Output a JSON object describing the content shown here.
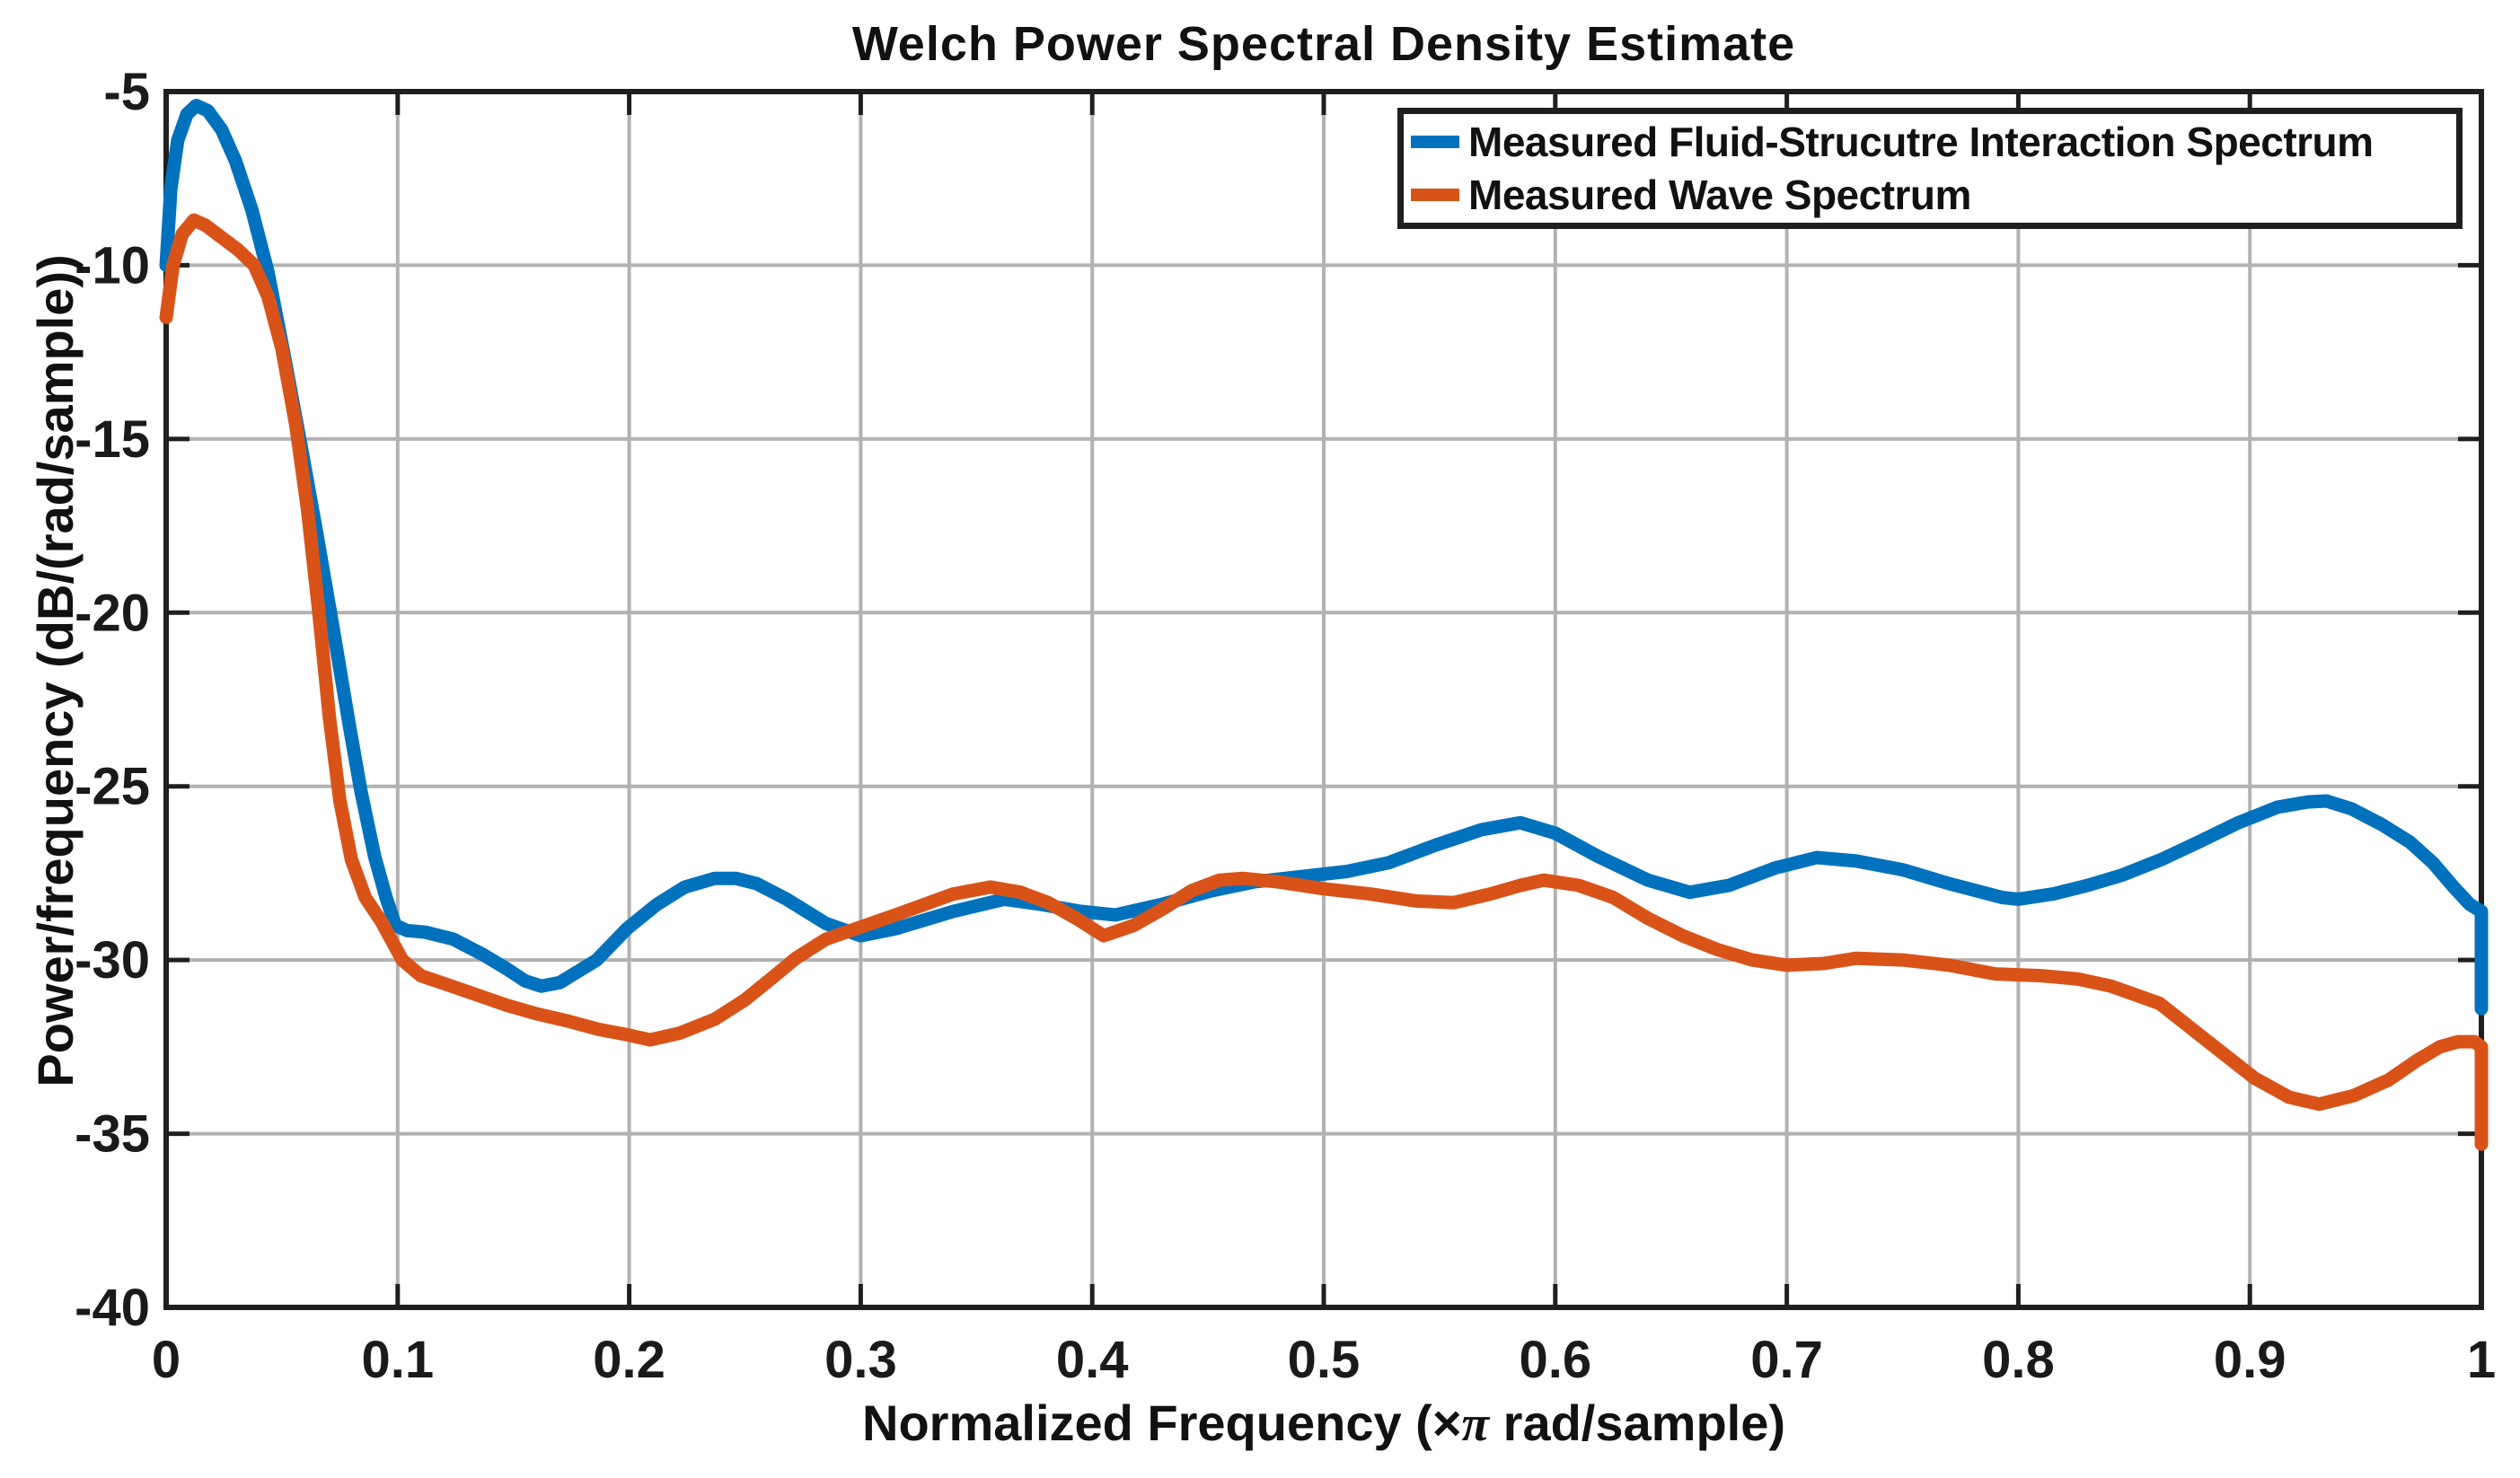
{
  "figure_title": "Welch Power Spectral Density Estimate",
  "chart_data": {
    "type": "line",
    "title": "Welch Power Spectral Density Estimate",
    "xlabel": "Normalized Frequency  (×π rad/sample)",
    "xlabel_parts": {
      "prefix": "Normalized Frequency  (×",
      "pi": "π",
      "suffix": " rad/sample)"
    },
    "ylabel": "Power/frequency (dB/(rad/sample))",
    "xlim": [
      0,
      1
    ],
    "ylim": [
      -40,
      -5
    ],
    "grid": true,
    "legend_position": "northeast",
    "axis_color": "#1f1f1f",
    "grid_color": "#b2b2b2",
    "xticks": [
      {
        "v": 0,
        "label": "0"
      },
      {
        "v": 0.1,
        "label": "0.1"
      },
      {
        "v": 0.2,
        "label": "0.2"
      },
      {
        "v": 0.3,
        "label": "0.3"
      },
      {
        "v": 0.4,
        "label": "0.4"
      },
      {
        "v": 0.5,
        "label": "0.5"
      },
      {
        "v": 0.6,
        "label": "0.6"
      },
      {
        "v": 0.7,
        "label": "0.7"
      },
      {
        "v": 0.8,
        "label": "0.8"
      },
      {
        "v": 0.9,
        "label": "0.9"
      },
      {
        "v": 1,
        "label": "1"
      }
    ],
    "yticks": [
      {
        "v": -40,
        "label": "-40"
      },
      {
        "v": -35,
        "label": "-35"
      },
      {
        "v": -30,
        "label": "-30"
      },
      {
        "v": -25,
        "label": "-25"
      },
      {
        "v": -20,
        "label": "-20"
      },
      {
        "v": -15,
        "label": "-15"
      },
      {
        "v": -10,
        "label": "-10"
      },
      {
        "v": -5,
        "label": "-5"
      }
    ],
    "series": [
      {
        "name": "Measured Fluid-Strucutre Interaction Spectrum",
        "color": "#0072BD",
        "points": [
          [
            0,
            -10.0
          ],
          [
            0.002,
            -7.8
          ],
          [
            0.005,
            -6.4
          ],
          [
            0.009,
            -5.65
          ],
          [
            0.013,
            -5.4
          ],
          [
            0.018,
            -5.55
          ],
          [
            0.024,
            -6.1
          ],
          [
            0.03,
            -7.0
          ],
          [
            0.037,
            -8.4
          ],
          [
            0.044,
            -10.2
          ],
          [
            0.051,
            -12.6
          ],
          [
            0.058,
            -15.1
          ],
          [
            0.065,
            -17.7
          ],
          [
            0.072,
            -20.4
          ],
          [
            0.079,
            -23.2
          ],
          [
            0.084,
            -25.1
          ],
          [
            0.09,
            -27.0
          ],
          [
            0.095,
            -28.2
          ],
          [
            0.099,
            -29.0
          ],
          [
            0.104,
            -29.15
          ],
          [
            0.112,
            -29.2
          ],
          [
            0.124,
            -29.4
          ],
          [
            0.137,
            -29.85
          ],
          [
            0.147,
            -30.25
          ],
          [
            0.155,
            -30.6
          ],
          [
            0.162,
            -30.75
          ],
          [
            0.17,
            -30.65
          ],
          [
            0.186,
            -30.0
          ],
          [
            0.199,
            -29.1
          ],
          [
            0.212,
            -28.4
          ],
          [
            0.224,
            -27.9
          ],
          [
            0.237,
            -27.65
          ],
          [
            0.246,
            -27.65
          ],
          [
            0.255,
            -27.8
          ],
          [
            0.268,
            -28.25
          ],
          [
            0.285,
            -28.95
          ],
          [
            0.3,
            -29.3
          ],
          [
            0.315,
            -29.1
          ],
          [
            0.34,
            -28.6
          ],
          [
            0.362,
            -28.25
          ],
          [
            0.378,
            -28.4
          ],
          [
            0.395,
            -28.6
          ],
          [
            0.41,
            -28.7
          ],
          [
            0.43,
            -28.4
          ],
          [
            0.452,
            -28.0
          ],
          [
            0.47,
            -27.75
          ],
          [
            0.49,
            -27.6
          ],
          [
            0.51,
            -27.45
          ],
          [
            0.528,
            -27.2
          ],
          [
            0.548,
            -26.7
          ],
          [
            0.568,
            -26.25
          ],
          [
            0.585,
            -26.05
          ],
          [
            0.6,
            -26.35
          ],
          [
            0.618,
            -27.0
          ],
          [
            0.64,
            -27.7
          ],
          [
            0.658,
            -28.05
          ],
          [
            0.675,
            -27.85
          ],
          [
            0.695,
            -27.35
          ],
          [
            0.713,
            -27.05
          ],
          [
            0.73,
            -27.15
          ],
          [
            0.75,
            -27.4
          ],
          [
            0.77,
            -27.8
          ],
          [
            0.793,
            -28.2
          ],
          [
            0.8,
            -28.25
          ],
          [
            0.815,
            -28.1
          ],
          [
            0.83,
            -27.85
          ],
          [
            0.845,
            -27.55
          ],
          [
            0.862,
            -27.1
          ],
          [
            0.878,
            -26.6
          ],
          [
            0.895,
            -26.05
          ],
          [
            0.912,
            -25.6
          ],
          [
            0.925,
            -25.45
          ],
          [
            0.933,
            -25.42
          ],
          [
            0.944,
            -25.65
          ],
          [
            0.957,
            -26.1
          ],
          [
            0.969,
            -26.6
          ],
          [
            0.979,
            -27.2
          ],
          [
            0.988,
            -27.9
          ],
          [
            0.995,
            -28.4
          ],
          [
            1.0,
            -28.6
          ],
          [
            1.0,
            -31.4
          ]
        ]
      },
      {
        "name": "Measured Wave Spectrum",
        "color": "#D95319",
        "points": [
          [
            0,
            -11.5
          ],
          [
            0.003,
            -10.0
          ],
          [
            0.007,
            -9.1
          ],
          [
            0.012,
            -8.7
          ],
          [
            0.017,
            -8.85
          ],
          [
            0.024,
            -9.2
          ],
          [
            0.031,
            -9.55
          ],
          [
            0.038,
            -10.0
          ],
          [
            0.044,
            -10.9
          ],
          [
            0.05,
            -12.4
          ],
          [
            0.056,
            -14.6
          ],
          [
            0.061,
            -17.0
          ],
          [
            0.066,
            -20.0
          ],
          [
            0.0705,
            -23.0
          ],
          [
            0.075,
            -25.4
          ],
          [
            0.08,
            -27.1
          ],
          [
            0.086,
            -28.2
          ],
          [
            0.093,
            -28.9
          ],
          [
            0.102,
            -30.0
          ],
          [
            0.11,
            -30.45
          ],
          [
            0.121,
            -30.7
          ],
          [
            0.134,
            -31.0
          ],
          [
            0.147,
            -31.3
          ],
          [
            0.16,
            -31.55
          ],
          [
            0.173,
            -31.75
          ],
          [
            0.187,
            -32.0
          ],
          [
            0.199,
            -32.15
          ],
          [
            0.209,
            -32.3
          ],
          [
            0.222,
            -32.1
          ],
          [
            0.237,
            -31.7
          ],
          [
            0.25,
            -31.15
          ],
          [
            0.262,
            -30.5
          ],
          [
            0.272,
            -29.95
          ],
          [
            0.285,
            -29.4
          ],
          [
            0.3,
            -29.05
          ],
          [
            0.315,
            -28.7
          ],
          [
            0.34,
            -28.1
          ],
          [
            0.356,
            -27.9
          ],
          [
            0.369,
            -28.05
          ],
          [
            0.381,
            -28.35
          ],
          [
            0.393,
            -28.8
          ],
          [
            0.405,
            -29.3
          ],
          [
            0.418,
            -29.0
          ],
          [
            0.43,
            -28.55
          ],
          [
            0.443,
            -28.0
          ],
          [
            0.455,
            -27.7
          ],
          [
            0.465,
            -27.65
          ],
          [
            0.48,
            -27.75
          ],
          [
            0.5,
            -27.95
          ],
          [
            0.52,
            -28.1
          ],
          [
            0.54,
            -28.3
          ],
          [
            0.556,
            -28.35
          ],
          [
            0.572,
            -28.1
          ],
          [
            0.585,
            -27.85
          ],
          [
            0.595,
            -27.7
          ],
          [
            0.61,
            -27.85
          ],
          [
            0.625,
            -28.2
          ],
          [
            0.64,
            -28.8
          ],
          [
            0.655,
            -29.3
          ],
          [
            0.67,
            -29.7
          ],
          [
            0.685,
            -30.0
          ],
          [
            0.7,
            -30.15
          ],
          [
            0.716,
            -30.1
          ],
          [
            0.73,
            -29.95
          ],
          [
            0.75,
            -30.0
          ],
          [
            0.77,
            -30.15
          ],
          [
            0.79,
            -30.4
          ],
          [
            0.81,
            -30.45
          ],
          [
            0.826,
            -30.55
          ],
          [
            0.84,
            -30.75
          ],
          [
            0.861,
            -31.25
          ],
          [
            0.881,
            -32.3
          ],
          [
            0.902,
            -33.4
          ],
          [
            0.917,
            -33.95
          ],
          [
            0.93,
            -34.15
          ],
          [
            0.945,
            -33.9
          ],
          [
            0.96,
            -33.45
          ],
          [
            0.972,
            -32.9
          ],
          [
            0.982,
            -32.5
          ],
          [
            0.99,
            -32.35
          ],
          [
            0.997,
            -32.35
          ],
          [
            1.0,
            -32.5
          ],
          [
            1.0,
            -35.3
          ]
        ]
      }
    ]
  }
}
